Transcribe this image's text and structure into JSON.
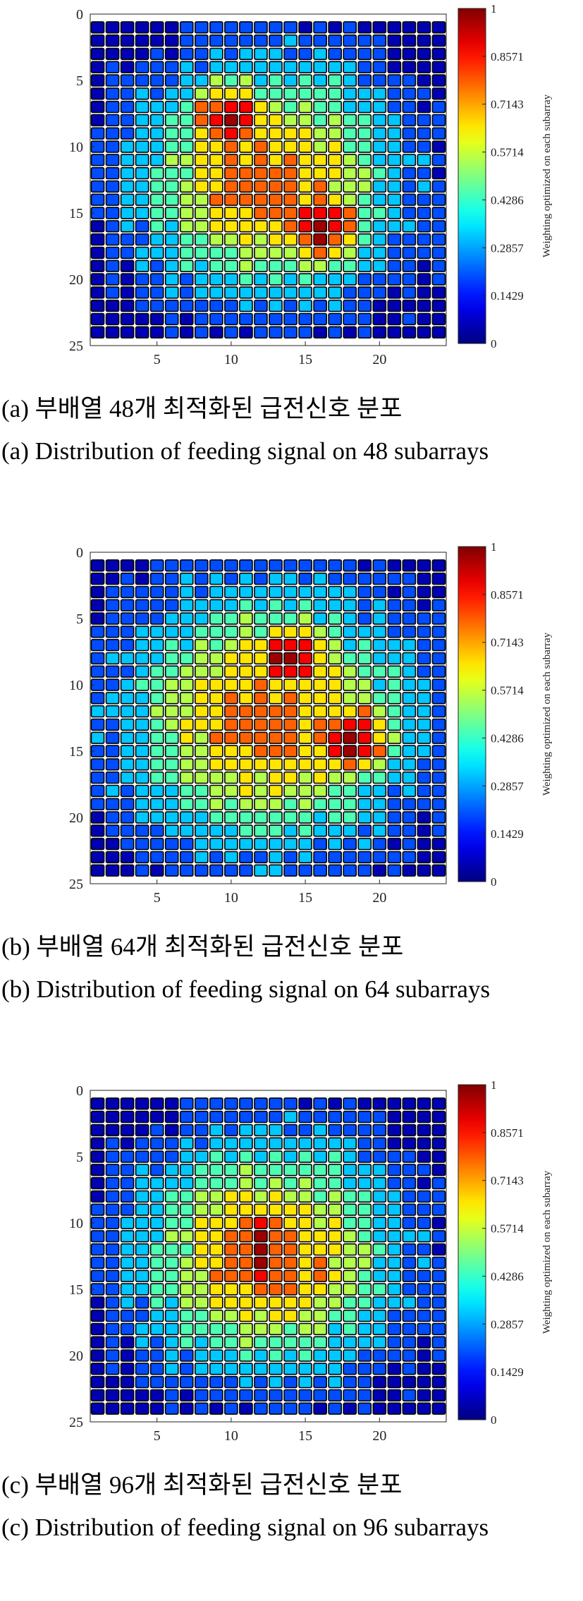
{
  "colorbar": {
    "label": "Weighting optimized on each subarray",
    "ticks": [
      {
        "value": 0,
        "label": "0"
      },
      {
        "value": 0.1429,
        "label": "0.1429"
      },
      {
        "value": 0.2857,
        "label": "0.2857"
      },
      {
        "value": 0.4286,
        "label": "0.4286"
      },
      {
        "value": 0.5714,
        "label": "0.5714"
      },
      {
        "value": 0.7143,
        "label": "0.7143"
      },
      {
        "value": 0.8571,
        "label": "0.8571"
      },
      {
        "value": 1,
        "label": "1"
      }
    ],
    "colormap": "jet"
  },
  "chart_data": [
    {
      "type": "heatmap",
      "caption_ko": "(a) 부배열 48개 최적화된 급전신호 분포",
      "caption_en": "(a) Distribution of feeding signal on 48 subarrays",
      "xticks": [
        {
          "value": 5,
          "label": "5"
        },
        {
          "value": 10,
          "label": "10"
        },
        {
          "value": 15,
          "label": "15"
        },
        {
          "value": 20,
          "label": "20"
        }
      ],
      "yticks": [
        {
          "value": 0,
          "label": "0"
        },
        {
          "value": 5,
          "label": "5"
        },
        {
          "value": 10,
          "label": "10"
        },
        {
          "value": 15,
          "label": "15"
        },
        {
          "value": 20,
          "label": "20"
        },
        {
          "value": 25,
          "label": "25"
        }
      ],
      "xlim": [
        0.5,
        24.5
      ],
      "ylim": [
        0,
        25
      ],
      "clim": [
        0,
        1
      ],
      "grid_rows": 24,
      "grid_cols": 24,
      "shape": "square",
      "pattern": "two-lobe",
      "peaks": [
        [
          8,
          10
        ],
        [
          16,
          16
        ]
      ],
      "spread": 1.0
    },
    {
      "type": "heatmap",
      "caption_ko": "(b) 부배열 64개 최적화된 급전신호 분포",
      "caption_en": "(b) Distribution of feeding signal on 64 subarrays",
      "xticks": [
        {
          "value": 5,
          "label": "5"
        },
        {
          "value": 10,
          "label": "10"
        },
        {
          "value": 15,
          "label": "15"
        },
        {
          "value": 20,
          "label": "20"
        }
      ],
      "yticks": [
        {
          "value": 0,
          "label": "0"
        },
        {
          "value": 5,
          "label": "5"
        },
        {
          "value": 10,
          "label": "10"
        },
        {
          "value": 15,
          "label": "15"
        },
        {
          "value": 20,
          "label": "20"
        },
        {
          "value": 25,
          "label": "25"
        }
      ],
      "xlim": [
        0.5,
        24.5
      ],
      "ylim": [
        0,
        25
      ],
      "clim": [
        0,
        1
      ],
      "grid_rows": 24,
      "grid_cols": 24,
      "shape": "square",
      "pattern": "two-lobe",
      "peaks": [
        [
          8,
          14
        ],
        [
          14,
          18
        ]
      ],
      "spread": 1.1
    },
    {
      "type": "heatmap",
      "caption_ko": "(c) 부배열 96개 최적화된 급전신호 분포",
      "caption_en": "(c) Distribution of feeding signal on 96 subarrays",
      "xticks": [
        {
          "value": 5,
          "label": "5"
        },
        {
          "value": 10,
          "label": "10"
        },
        {
          "value": 15,
          "label": "15"
        },
        {
          "value": 20,
          "label": "20"
        }
      ],
      "yticks": [
        {
          "value": 0,
          "label": "0"
        },
        {
          "value": 5,
          "label": "5"
        },
        {
          "value": 10,
          "label": "10"
        },
        {
          "value": 15,
          "label": "15"
        },
        {
          "value": 20,
          "label": "20"
        },
        {
          "value": 25,
          "label": "25"
        }
      ],
      "xlim": [
        0.5,
        24.5
      ],
      "ylim": [
        0,
        25
      ],
      "clim": [
        0,
        1
      ],
      "grid_rows": 24,
      "grid_cols": 24,
      "shape": "square",
      "pattern": "central-cross",
      "peaks": [
        [
          12.5,
          12
        ]
      ],
      "spread": 1.0
    }
  ]
}
